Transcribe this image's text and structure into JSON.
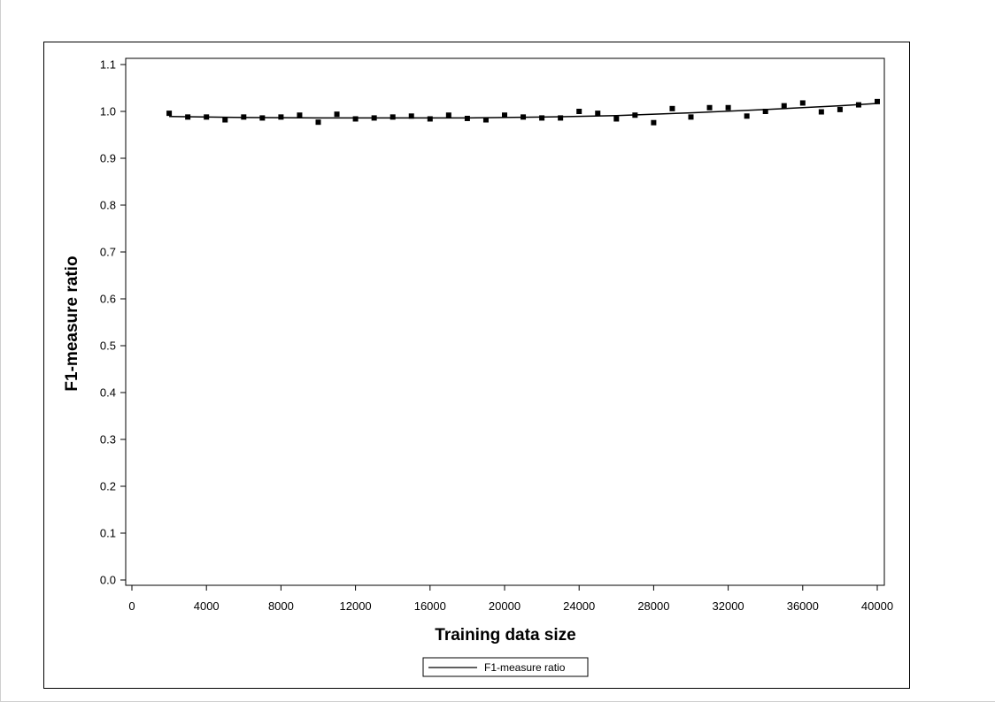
{
  "chart_data": {
    "type": "scatter",
    "xlabel": "Training data size",
    "ylabel": "F1-measure ratio",
    "xlim": [
      0,
      40000
    ],
    "ylim": [
      0.0,
      1.1
    ],
    "x_ticks": [
      0,
      4000,
      8000,
      12000,
      16000,
      20000,
      24000,
      28000,
      32000,
      36000,
      40000
    ],
    "y_ticks": [
      0.0,
      0.1,
      0.2,
      0.3,
      0.4,
      0.5,
      0.6,
      0.7,
      0.8,
      0.9,
      1.0,
      1.1
    ],
    "y_tick_labels": [
      "0.0",
      "0.1",
      "0.2",
      "0.3",
      "0.4",
      "0.5",
      "0.6",
      "0.7",
      "0.8",
      "0.9",
      "1.0",
      "1.1"
    ],
    "grid": false,
    "legend": {
      "position": "bottom-center",
      "entries": [
        "F1-measure ratio"
      ]
    },
    "series": [
      {
        "name": "F1-measure ratio",
        "x": [
          2000,
          3000,
          4000,
          5000,
          6000,
          7000,
          8000,
          9000,
          10000,
          11000,
          12000,
          13000,
          14000,
          15000,
          16000,
          17000,
          18000,
          19000,
          20000,
          21000,
          22000,
          23000,
          24000,
          25000,
          26000,
          27000,
          28000,
          29000,
          30000,
          31000,
          32000,
          33000,
          34000,
          35000,
          36000,
          37000,
          38000,
          39000,
          40000
        ],
        "y": [
          0.996,
          0.988,
          0.988,
          0.982,
          0.988,
          0.986,
          0.988,
          0.992,
          0.977,
          0.994,
          0.984,
          0.986,
          0.988,
          0.99,
          0.984,
          0.992,
          0.985,
          0.982,
          0.992,
          0.988,
          0.986,
          0.986,
          1.0,
          0.996,
          0.984,
          0.992,
          0.976,
          1.006,
          0.988,
          1.008,
          1.008,
          0.99,
          1.0,
          1.012,
          1.018,
          0.999,
          1.004,
          1.014,
          1.021
        ]
      }
    ],
    "trend_line": {
      "x": [
        2000,
        6000,
        10000,
        14000,
        18000,
        22000,
        26000,
        30000,
        34000,
        38000,
        40000
      ],
      "y": [
        0.989,
        0.987,
        0.986,
        0.986,
        0.986,
        0.988,
        0.991,
        0.997,
        1.004,
        1.012,
        1.017
      ]
    }
  }
}
